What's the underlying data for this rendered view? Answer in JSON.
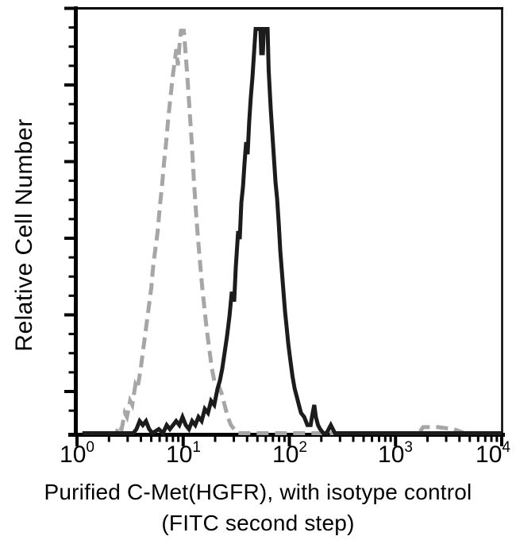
{
  "chart_data": {
    "type": "line",
    "subtype": "flow-cytometry-histogram-overlay",
    "title": "",
    "ylabel": "Relative Cell Number",
    "xlabel_line1": "Purified C-Met(HGFR), with isotype control",
    "xlabel_line2": "(FITC second step)",
    "x_axis": {
      "scale": "log10",
      "min": 1,
      "max": 10000,
      "minor_ticks": "log multiples 2-9 per decade"
    },
    "y_axis": {
      "label": "Relative Cell Number",
      "numeric_labels": "none",
      "major_ticks": 6,
      "minor_ticks_between_majors": 3
    },
    "x_ticks": [
      {
        "base": "10",
        "exp": "0"
      },
      {
        "base": "10",
        "exp": "1"
      },
      {
        "base": "10",
        "exp": "2"
      },
      {
        "base": "10",
        "exp": "3"
      },
      {
        "base": "10",
        "exp": "4"
      }
    ],
    "grid": false,
    "legend": "none",
    "colors": {
      "axis": "#000000",
      "solid_series": "#1c1c1c",
      "dashed_series": "#a6a6a6"
    },
    "series": [
      {
        "name": "Isotype control",
        "line_style": "dashed",
        "color": "#a6a6a6",
        "peak_x_approx": 9.7,
        "points_log10x_relheight": [
          [
            0.3,
            0
          ],
          [
            0.37,
            0
          ],
          [
            0.4,
            2
          ],
          [
            0.42,
            1
          ],
          [
            0.45,
            5
          ],
          [
            0.47,
            4
          ],
          [
            0.5,
            8
          ],
          [
            0.52,
            7
          ],
          [
            0.55,
            12
          ],
          [
            0.57,
            11
          ],
          [
            0.6,
            16
          ],
          [
            0.62,
            20
          ],
          [
            0.64,
            24
          ],
          [
            0.66,
            28
          ],
          [
            0.685,
            33
          ],
          [
            0.7,
            36
          ],
          [
            0.72,
            42
          ],
          [
            0.74,
            46
          ],
          [
            0.76,
            50
          ],
          [
            0.78,
            56
          ],
          [
            0.8,
            61
          ],
          [
            0.82,
            67
          ],
          [
            0.84,
            72
          ],
          [
            0.86,
            78
          ],
          [
            0.88,
            83
          ],
          [
            0.9,
            88
          ],
          [
            0.92,
            92
          ],
          [
            0.935,
            95
          ],
          [
            0.95,
            91
          ],
          [
            0.965,
            96
          ],
          [
            0.98,
            100
          ],
          [
            0.995,
            98
          ],
          [
            1.005,
            100
          ],
          [
            1.02,
            95
          ],
          [
            1.04,
            88
          ],
          [
            1.06,
            80
          ],
          [
            1.08,
            72
          ],
          [
            1.1,
            63
          ],
          [
            1.12,
            55
          ],
          [
            1.14,
            48
          ],
          [
            1.16,
            42
          ],
          [
            1.18,
            36
          ],
          [
            1.2,
            31
          ],
          [
            1.22,
            26
          ],
          [
            1.245,
            21
          ],
          [
            1.27,
            16
          ],
          [
            1.3,
            12
          ],
          [
            1.33,
            12
          ],
          [
            1.36,
            10
          ],
          [
            1.39,
            7
          ],
          [
            1.42,
            4
          ],
          [
            1.45,
            2
          ],
          [
            1.48,
            1
          ],
          [
            1.51,
            0
          ],
          [
            3.22,
            0
          ],
          [
            3.26,
            1.5
          ],
          [
            3.4,
            1.5
          ],
          [
            3.55,
            1
          ],
          [
            3.65,
            0
          ],
          [
            4.0,
            0
          ]
        ]
      },
      {
        "name": "Purified C-Met(HGFR) FITC",
        "line_style": "solid",
        "color": "#1c1c1c",
        "peak_x_approx": 52,
        "points_log10x_relheight": [
          [
            0.05,
            0
          ],
          [
            0.53,
            0
          ],
          [
            0.56,
            1
          ],
          [
            0.59,
            3
          ],
          [
            0.62,
            2
          ],
          [
            0.65,
            3
          ],
          [
            0.68,
            1
          ],
          [
            0.71,
            0
          ],
          [
            0.77,
            1
          ],
          [
            0.81,
            0
          ],
          [
            0.845,
            2
          ],
          [
            0.875,
            1
          ],
          [
            0.905,
            2
          ],
          [
            0.934,
            3
          ],
          [
            0.964,
            2
          ],
          [
            0.994,
            4
          ],
          [
            1.024,
            2
          ],
          [
            1.054,
            1
          ],
          [
            1.084,
            3
          ],
          [
            1.114,
            2
          ],
          [
            1.144,
            4
          ],
          [
            1.174,
            3
          ],
          [
            1.204,
            6
          ],
          [
            1.234,
            5
          ],
          [
            1.263,
            8
          ],
          [
            1.293,
            7
          ],
          [
            1.323,
            11
          ],
          [
            1.346,
            13
          ],
          [
            1.368,
            16
          ],
          [
            1.391,
            20
          ],
          [
            1.413,
            24
          ],
          [
            1.436,
            29
          ],
          [
            1.458,
            35
          ],
          [
            1.47,
            33
          ],
          [
            1.481,
            33
          ],
          [
            1.495,
            41
          ],
          [
            1.518,
            50
          ],
          [
            1.533,
            48
          ],
          [
            1.548,
            57
          ],
          [
            1.563,
            61
          ],
          [
            1.578,
            67
          ],
          [
            1.593,
            72
          ],
          [
            1.607,
            69
          ],
          [
            1.622,
            77
          ],
          [
            1.637,
            83
          ],
          [
            1.652,
            88
          ],
          [
            1.667,
            94
          ],
          [
            1.682,
            100
          ],
          [
            1.727,
            100
          ],
          [
            1.735,
            94
          ],
          [
            1.75,
            94
          ],
          [
            1.76,
            100
          ],
          [
            1.795,
            100
          ],
          [
            1.805,
            90
          ],
          [
            1.817,
            84
          ],
          [
            1.825,
            80
          ],
          [
            1.84,
            74
          ],
          [
            1.855,
            68
          ],
          [
            1.87,
            62
          ],
          [
            1.885,
            58
          ],
          [
            1.9,
            52
          ],
          [
            1.915,
            45
          ],
          [
            1.93,
            40
          ],
          [
            1.945,
            35
          ],
          [
            1.96,
            30
          ],
          [
            1.975,
            26
          ],
          [
            1.99,
            22
          ],
          [
            2.01,
            18
          ],
          [
            2.03,
            14
          ],
          [
            2.05,
            11
          ],
          [
            2.07,
            9
          ],
          [
            2.09,
            7
          ],
          [
            2.11,
            5
          ],
          [
            2.14,
            4
          ],
          [
            2.17,
            2
          ],
          [
            2.2,
            2
          ],
          [
            2.22,
            5
          ],
          [
            2.235,
            7
          ],
          [
            2.25,
            4
          ],
          [
            2.27,
            2
          ],
          [
            2.29,
            1
          ],
          [
            2.32,
            0
          ],
          [
            2.35,
            0
          ],
          [
            2.37,
            1
          ],
          [
            2.39,
            2
          ],
          [
            2.41,
            1
          ],
          [
            2.43,
            0
          ],
          [
            4.0,
            0
          ]
        ]
      }
    ]
  }
}
